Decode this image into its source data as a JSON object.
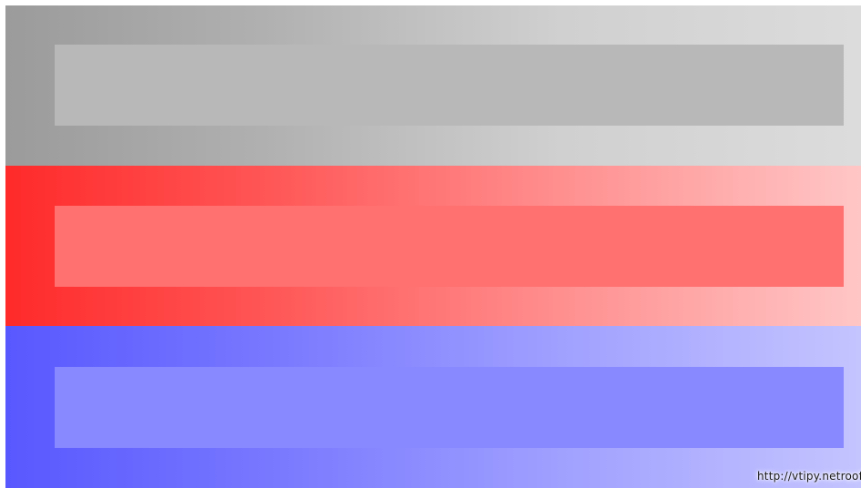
{
  "bands": [
    {
      "id": "gray",
      "background_gradient": [
        "#9b9b9b",
        "#b0b0b0",
        "#d0d0d0",
        "#dcdcdc"
      ],
      "bar_color": "#b8b8b8"
    },
    {
      "id": "red",
      "background_gradient": [
        "#ff2a2a",
        "#ff5555",
        "#ff8f8f",
        "#ffc6c6"
      ],
      "bar_color": "#ff7070"
    },
    {
      "id": "blue",
      "background_gradient": [
        "#5858ff",
        "#7777ff",
        "#a0a0ff",
        "#c4c4ff"
      ],
      "bar_color": "#8888ff"
    }
  ],
  "watermark": {
    "text": "http://vtipy.netroof"
  }
}
